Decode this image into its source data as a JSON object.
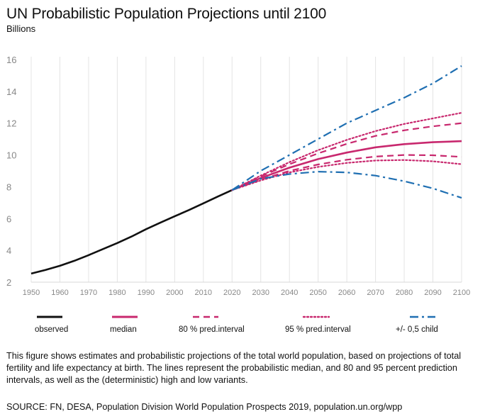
{
  "chart_data": {
    "type": "line",
    "title": "UN Probabilistic Population Projections until 2100",
    "subtitle": "Billions",
    "xlim": [
      1950,
      2100
    ],
    "ylim": [
      2,
      16
    ],
    "x_ticks": [
      1950,
      1960,
      1970,
      1980,
      1990,
      2000,
      2010,
      2020,
      2030,
      2040,
      2050,
      2060,
      2070,
      2080,
      2090,
      2100
    ],
    "y_ticks": [
      2,
      4,
      6,
      8,
      10,
      12,
      14,
      16
    ],
    "grid": "vertical",
    "legend_position": "bottom",
    "series": [
      {
        "name": "observed",
        "style": "solid",
        "color": "#111111",
        "x": [
          1950,
          1955,
          1960,
          1965,
          1970,
          1975,
          1980,
          1985,
          1990,
          1995,
          2000,
          2005,
          2010,
          2015,
          2020
        ],
        "y": [
          2.54,
          2.77,
          3.03,
          3.34,
          3.7,
          4.08,
          4.46,
          4.87,
          5.33,
          5.74,
          6.14,
          6.54,
          6.96,
          7.38,
          7.79
        ]
      },
      {
        "name": "median",
        "style": "solid",
        "color": "#c8286e",
        "x": [
          2020,
          2030,
          2040,
          2050,
          2060,
          2070,
          2080,
          2090,
          2100
        ],
        "y": [
          7.79,
          8.55,
          9.2,
          9.74,
          10.15,
          10.48,
          10.68,
          10.8,
          10.87
        ]
      },
      {
        "name": "80 % pred.interval (upper)",
        "style": "dashed",
        "color": "#c8286e",
        "x": [
          2020,
          2030,
          2040,
          2050,
          2060,
          2070,
          2080,
          2090,
          2100
        ],
        "y": [
          7.79,
          8.65,
          9.42,
          10.1,
          10.7,
          11.2,
          11.55,
          11.8,
          12.0
        ]
      },
      {
        "name": "80 % pred.interval (lower)",
        "style": "dashed",
        "color": "#c8286e",
        "x": [
          2020,
          2030,
          2040,
          2050,
          2060,
          2070,
          2080,
          2090,
          2100
        ],
        "y": [
          7.79,
          8.45,
          9.0,
          9.4,
          9.7,
          9.9,
          10.0,
          9.98,
          9.88
        ]
      },
      {
        "name": "95 % pred.interval (upper)",
        "style": "dotted",
        "color": "#c8286e",
        "x": [
          2020,
          2030,
          2040,
          2050,
          2060,
          2070,
          2080,
          2090,
          2100
        ],
        "y": [
          7.79,
          8.7,
          9.55,
          10.3,
          10.95,
          11.5,
          11.95,
          12.3,
          12.65
        ]
      },
      {
        "name": "95 % pred.interval (lower)",
        "style": "dotted",
        "color": "#c8286e",
        "x": [
          2020,
          2030,
          2040,
          2050,
          2060,
          2070,
          2080,
          2090,
          2100
        ],
        "y": [
          7.79,
          8.4,
          8.9,
          9.25,
          9.5,
          9.65,
          9.68,
          9.6,
          9.42
        ]
      },
      {
        "name": "+/- 0,5 child (high)",
        "style": "dashdot",
        "color": "#1f6fb2",
        "x": [
          2020,
          2030,
          2040,
          2050,
          2060,
          2070,
          2080,
          2090,
          2100
        ],
        "y": [
          7.79,
          9.0,
          10.0,
          11.0,
          12.0,
          12.8,
          13.6,
          14.5,
          15.6
        ]
      },
      {
        "name": "+/- 0,5 child (low)",
        "style": "dashdot",
        "color": "#1f6fb2",
        "x": [
          2020,
          2030,
          2040,
          2050,
          2060,
          2070,
          2080,
          2090,
          2100
        ],
        "y": [
          7.79,
          8.5,
          8.8,
          8.95,
          8.9,
          8.7,
          8.35,
          7.9,
          7.3
        ]
      }
    ],
    "legend": [
      {
        "label": "observed",
        "style": "solid",
        "color": "#111111"
      },
      {
        "label": "median",
        "style": "solid",
        "color": "#c8286e"
      },
      {
        "label": "80 % pred.interval",
        "style": "dashed",
        "color": "#c8286e"
      },
      {
        "label": "95 % pred.interval",
        "style": "dotted",
        "color": "#c8286e"
      },
      {
        "label": "+/- 0,5 child",
        "style": "dashdot",
        "color": "#1f6fb2"
      }
    ]
  },
  "caption": "This figure shows estimates and probabilistic projections of the total world population, based on projections of total fertility and life expectancy at birth. The lines represent the probabilistic median, and 80 and 95 percent prediction intervals, as well as the (deterministic) high and low variants.",
  "source": "SOURCE: FN, DESA, Population Division World Population Prospects 2019, population.un.org/wpp"
}
